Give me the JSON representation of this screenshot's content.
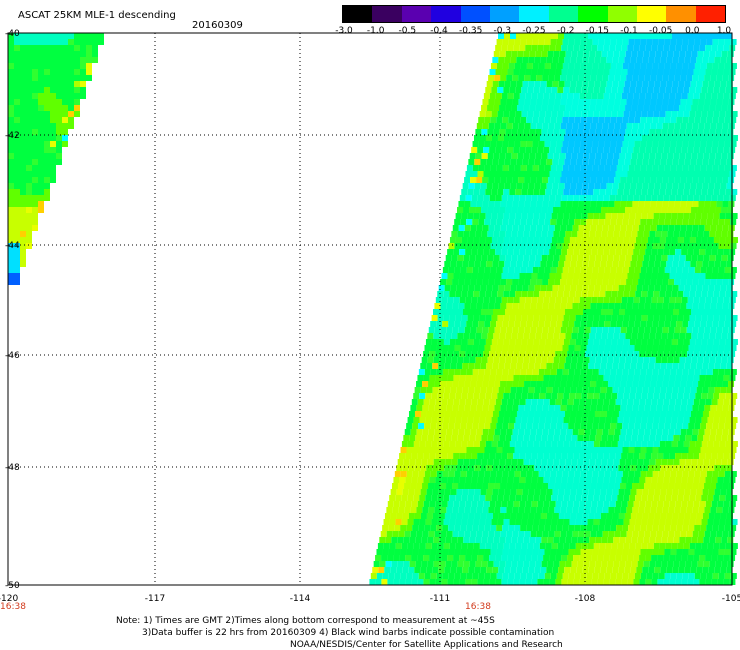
{
  "title": "ASCAT 25KM MLE-1 descending",
  "date": "20160309",
  "colorbar": {
    "labels": [
      "-3.0",
      "-1.0",
      "-0.5",
      "-0.4",
      "-0.35",
      "-0.3",
      "-0.25",
      "-0.2",
      "-0.15",
      "-0.1",
      "-0.05",
      "0.0",
      "1.0"
    ],
    "colors": [
      "#000000",
      "#3a0060",
      "#5a00b0",
      "#2000e0",
      "#0050ff",
      "#00a0ff",
      "#00f0ff",
      "#00ff90",
      "#00ff00",
      "#90ff00",
      "#ffff00",
      "#ff9000",
      "#ff2000"
    ]
  },
  "map": {
    "lat_labels": [
      "-40",
      "-42",
      "-44",
      "-46",
      "-48",
      "-50"
    ],
    "lon_labels": [
      "-120",
      "-117",
      "-114",
      "-111",
      "-108",
      "-105"
    ],
    "time_labels": [
      "16:38",
      "16:38"
    ]
  },
  "notes": [
    "Note: 1) Times are GMT 2)Times along bottom correspond to measurement at ~45S",
    "3)Data buffer is 22 hrs from 20160309 4) Black wind barbs indicate possible contamination",
    "NOAA/NESDIS/Center for Satellite Applications and Research"
  ]
}
